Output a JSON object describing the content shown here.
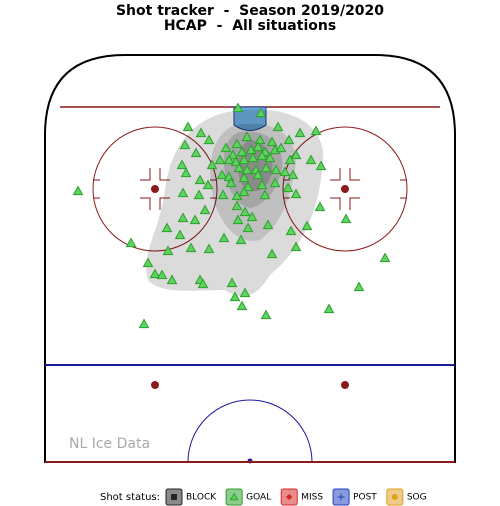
{
  "chart_data": {
    "type": "scatter",
    "title": "Shot tracker  -  Season 2019/2020",
    "subtitle": "HCAP  -  All situations",
    "watermark": "NL Ice Data",
    "legend_title": "Shot status:",
    "xlim": [
      -205,
      205
    ],
    "ylim": [
      0,
      407
    ],
    "series": [
      {
        "name": "BLOCK",
        "color": "#222222",
        "marker": "square",
        "x": [],
        "y": []
      },
      {
        "name": "GOAL",
        "color": "#2ca02c",
        "marker": "triangle",
        "x": [
          -12,
          11,
          -62,
          -49,
          28,
          50,
          66,
          -41,
          -13,
          -3,
          10,
          22,
          39,
          -65,
          -24,
          -17,
          -8,
          1,
          8,
          15,
          25,
          31,
          46,
          -54,
          -30,
          -21,
          -14,
          -6,
          3,
          12,
          20,
          40,
          61,
          -68,
          -38,
          -11,
          -3,
          6,
          16,
          26,
          71,
          -64,
          -28,
          -21,
          -6,
          8,
          35,
          43,
          -50,
          -42,
          -19,
          -2,
          12,
          25,
          38,
          -172,
          -67,
          -51,
          -27,
          -13,
          -6,
          15,
          46,
          -45,
          70,
          -13,
          -5,
          2,
          -67,
          -55,
          -12,
          -83,
          -2,
          18,
          41,
          57,
          96,
          -70,
          -26,
          -9,
          -119,
          46,
          -59,
          -82,
          -41,
          22,
          -102,
          135,
          -95,
          -88,
          -78,
          -50,
          -18,
          109,
          -47,
          -5,
          -15,
          -8,
          79,
          16,
          -106
        ],
        "y": [
          53,
          58,
          72,
          78,
          72,
          78,
          76,
          85,
          89,
          82,
          85,
          87,
          85,
          90,
          93,
          100,
          97,
          95,
          92,
          97,
          95,
          93,
          100,
          98,
          105,
          105,
          107,
          105,
          103,
          101,
          103,
          105,
          105,
          110,
          110,
          113,
          115,
          115,
          113,
          115,
          111,
          118,
          120,
          122,
          123,
          120,
          117,
          120,
          125,
          130,
          128,
          132,
          130,
          128,
          133,
          136,
          138,
          140,
          140,
          141,
          137,
          140,
          139,
          155,
          152,
          151,
          157,
          162,
          163,
          165,
          165,
          173,
          173,
          170,
          176,
          171,
          164,
          180,
          183,
          185,
          188,
          192,
          193,
          196,
          194,
          199,
          208,
          203,
          219,
          220,
          225,
          225,
          228,
          232,
          229,
          238,
          242,
          251,
          254,
          260,
          269
        ]
      },
      {
        "name": "MISS",
        "color": "#d62728",
        "marker": "diamond",
        "x": [],
        "y": []
      },
      {
        "name": "POST",
        "color": "#1f3fbf",
        "marker": "plus",
        "x": [],
        "y": []
      },
      {
        "name": "SOG",
        "color": "#e0a020",
        "marker": "circle",
        "x": [],
        "y": []
      }
    ]
  }
}
